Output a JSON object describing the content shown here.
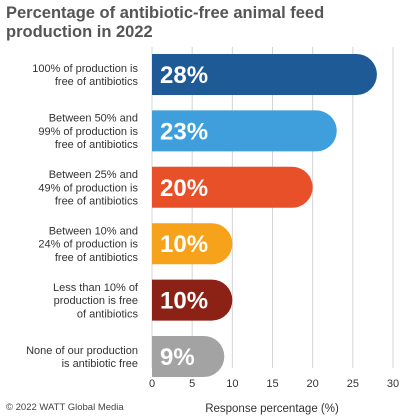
{
  "chart_data": {
    "type": "bar",
    "orientation": "horizontal",
    "title": "Percentage of antibiotic-free animal feed production in 2022",
    "xlabel": "Response percentage (%)",
    "xlim": [
      0,
      30
    ],
    "xticks": [
      0,
      5,
      10,
      15,
      20,
      25,
      30
    ],
    "grid": true,
    "categories": [
      [
        "100% of production is",
        "free of antibiotics"
      ],
      [
        "Between 50% and",
        "99% of production is",
        "free of antibiotics"
      ],
      [
        "Between 25% and",
        "49% of production is",
        "free of antibiotics"
      ],
      [
        "Between 10% and",
        "24% of production is",
        "free of antibiotics"
      ],
      [
        "Less than 10% of",
        "production is free",
        "of antibiotics"
      ],
      [
        "None of our production",
        "is antibiotic free"
      ]
    ],
    "values": [
      28,
      23,
      20,
      10,
      10,
      9
    ],
    "value_labels": [
      "28%",
      "23%",
      "20%",
      "10%",
      "10%",
      "9%"
    ],
    "colors": [
      "#1d5a96",
      "#3f9fdc",
      "#e8502a",
      "#f6a21b",
      "#8b2215",
      "#a3a3a3"
    ]
  },
  "footer": {
    "credit": "© 2022 WATT Global Media"
  }
}
